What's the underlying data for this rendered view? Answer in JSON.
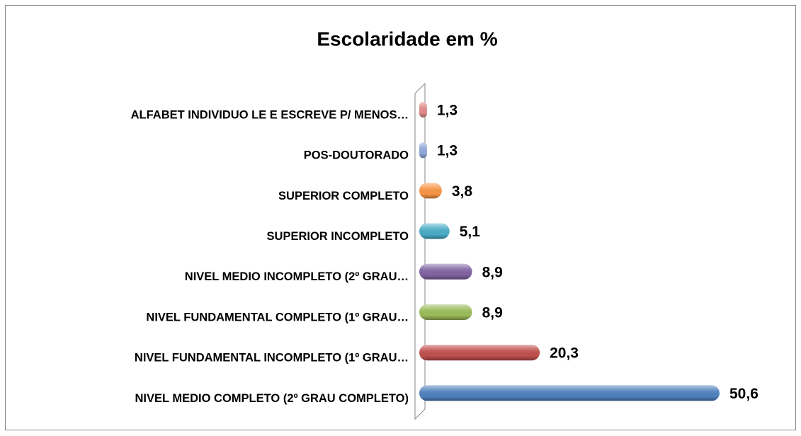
{
  "chart_data": {
    "type": "bar",
    "orientation": "horizontal",
    "title": "Escolaridade em %",
    "categories": [
      "ALFABET INDIVIDUO LE E ESCREVE P/ MENOS…",
      "POS-DOUTORADO",
      "SUPERIOR COMPLETO",
      "SUPERIOR INCOMPLETO",
      "NIVEL MEDIO INCOMPLETO (2º GRAU…",
      "NIVEL FUNDAMENTAL COMPLETO (1º GRAU…",
      "NIVEL FUNDAMENTAL INCOMPLETO (1º GRAU…",
      "NIVEL MEDIO COMPLETO (2º GRAU COMPLETO)"
    ],
    "values": [
      1.3,
      1.3,
      3.8,
      5.1,
      8.9,
      8.9,
      20.3,
      50.6
    ],
    "value_labels": [
      "1,3",
      "1,3",
      "3,8",
      "5,1",
      "8,9",
      "8,9",
      "20,3",
      "50,6"
    ],
    "colors": [
      "#e08a8a",
      "#8fa9d9",
      "#f79646",
      "#4bacc6",
      "#8064a2",
      "#9bbb59",
      "#c0504d",
      "#4f81bd"
    ]
  }
}
